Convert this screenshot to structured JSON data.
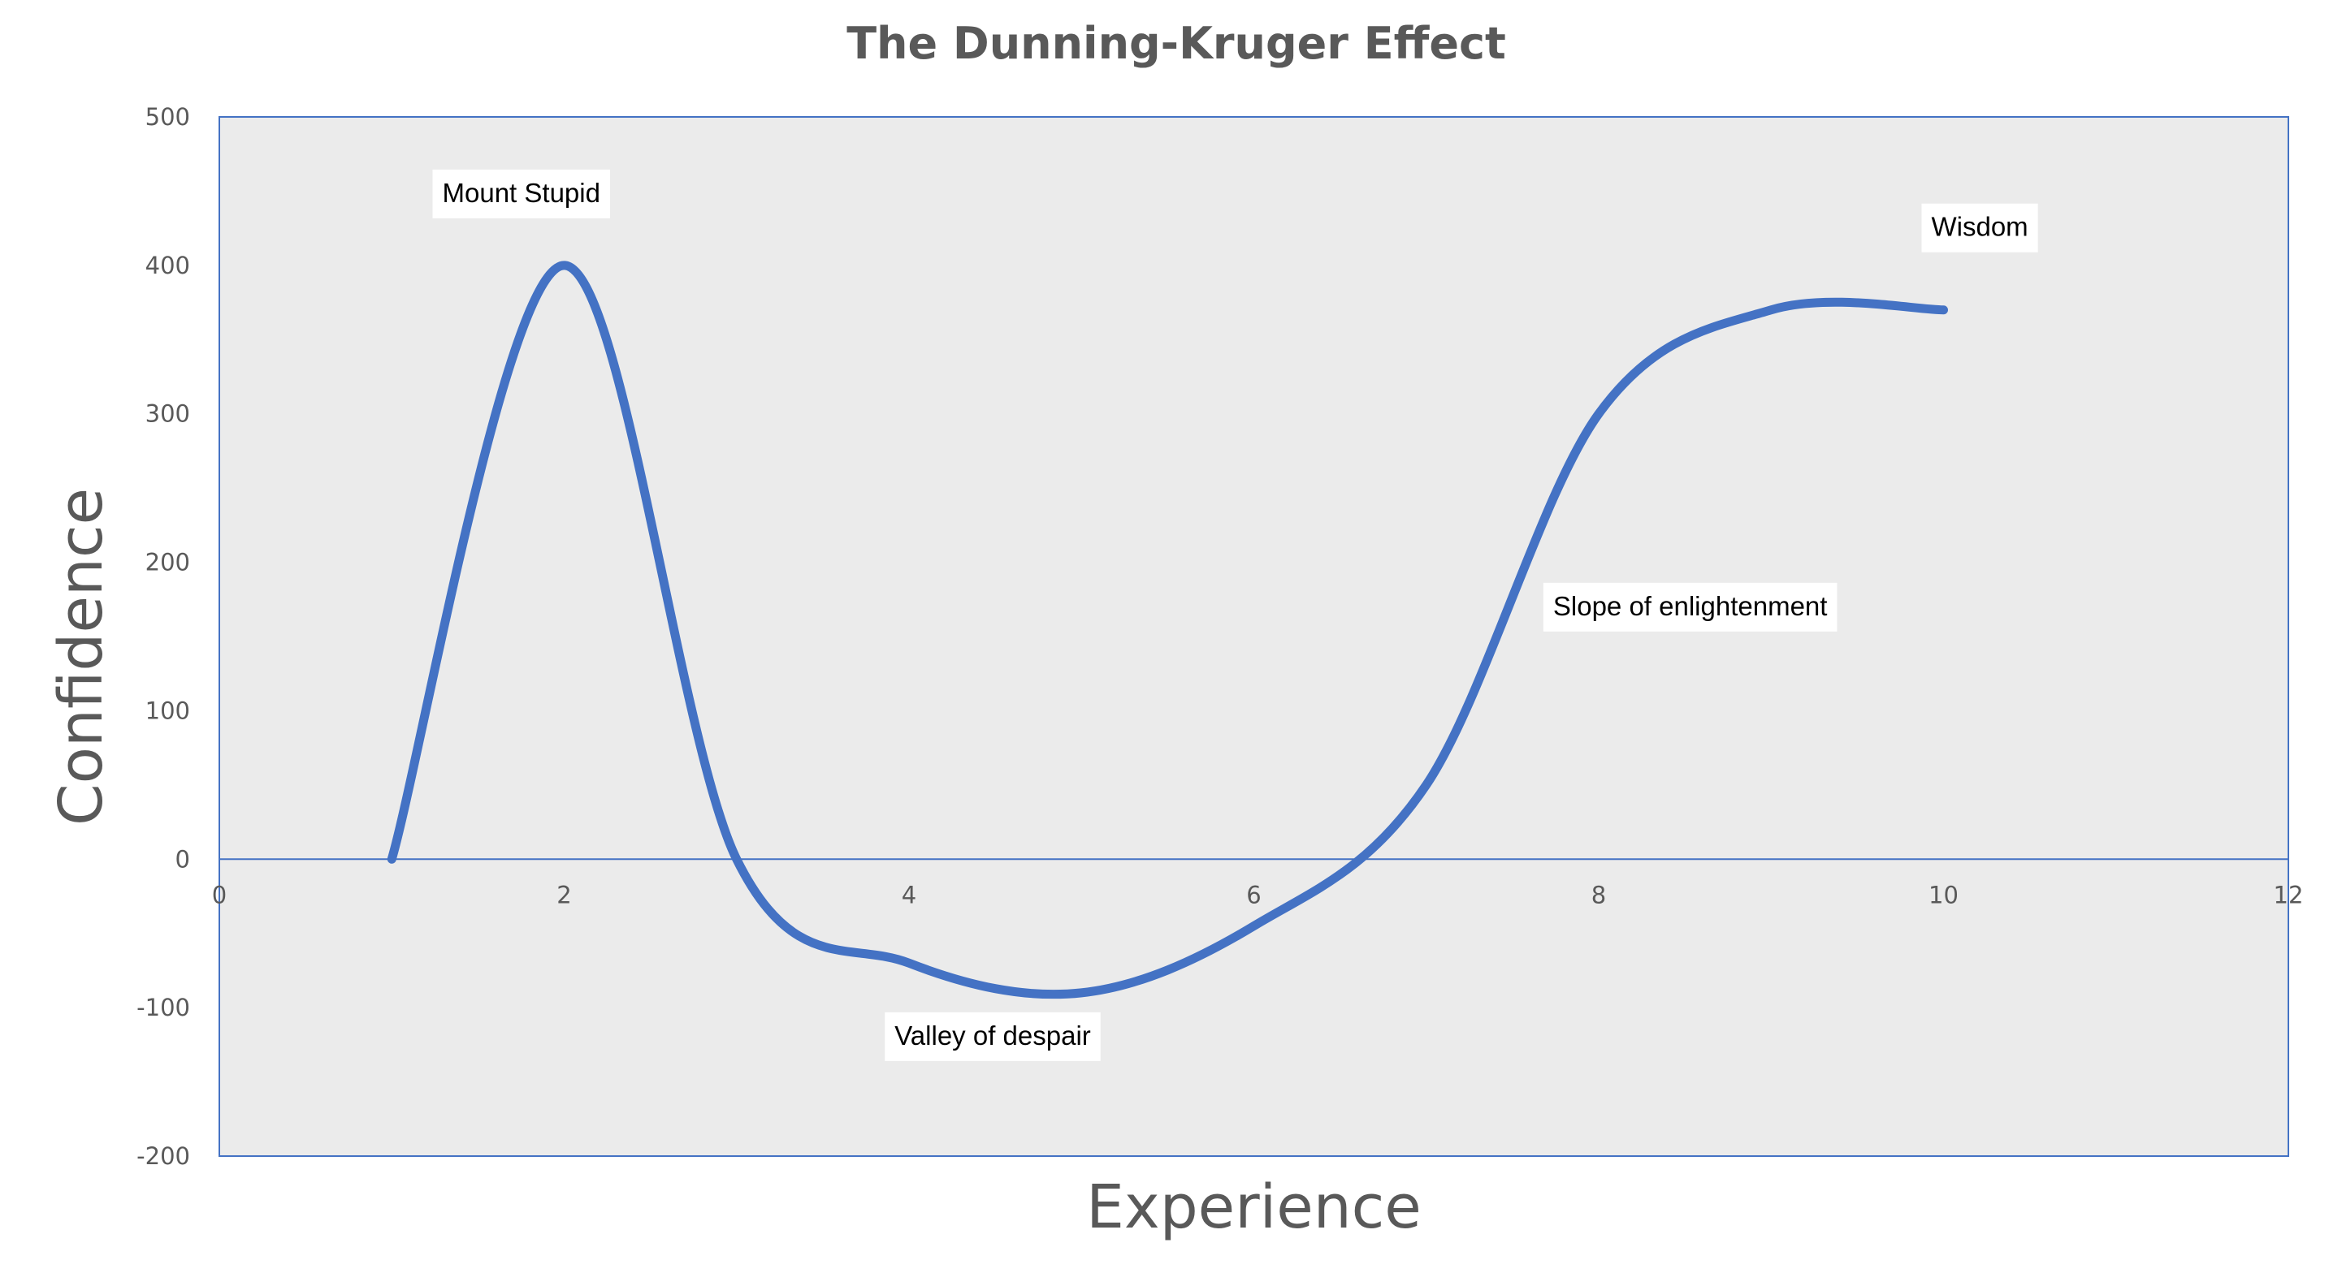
{
  "chart_data": {
    "type": "line",
    "title": "The Dunning-Kruger  Effect",
    "xlabel": "Experience",
    "ylabel": "Confidence",
    "xlim": [
      0,
      12
    ],
    "ylim": [
      -200,
      500
    ],
    "x_ticks": [
      "0",
      "2",
      "4",
      "6",
      "8",
      "10",
      "12"
    ],
    "y_ticks": [
      "500",
      "400",
      "300",
      "200",
      "100",
      "0",
      "-100",
      "-200"
    ],
    "grid": false,
    "legend": "none",
    "series": [
      {
        "color": "#4472C4",
        "smooth": true,
        "points": [
          [
            1,
            0
          ],
          [
            2,
            400
          ],
          [
            3,
            0
          ],
          [
            4,
            -70
          ],
          [
            5,
            -90
          ],
          [
            6,
            -45
          ],
          [
            7,
            50
          ],
          [
            8,
            300
          ],
          [
            9,
            370
          ],
          [
            10,
            370
          ]
        ]
      }
    ],
    "annotations": [
      {
        "text": "Mount Stupid",
        "x": 2,
        "y": 400
      },
      {
        "text": "Valley of despair",
        "x": 5,
        "y": -90
      },
      {
        "text": "Slope of enlightenment",
        "x": 7.5,
        "y": 120
      },
      {
        "text": "Wisdom",
        "x": 10,
        "y": 370
      }
    ],
    "colors": {
      "plot_background": "#EBEBEB",
      "plot_border": "#4472C4",
      "zero_line": "#4472C4",
      "series_line": "#4472C4",
      "text": "#595959"
    }
  }
}
